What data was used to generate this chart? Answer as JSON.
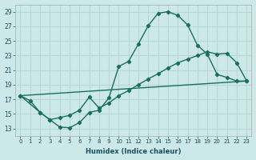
{
  "bg_color": "#cce8e8",
  "grid_color": "#b8d8d8",
  "line_color": "#1a6e60",
  "xlim": [
    -0.5,
    23.5
  ],
  "ylim": [
    12.0,
    30.0
  ],
  "xticks": [
    0,
    1,
    2,
    3,
    4,
    5,
    6,
    7,
    8,
    9,
    10,
    11,
    12,
    13,
    14,
    15,
    16,
    17,
    18,
    19,
    20,
    21,
    22,
    23
  ],
  "yticks": [
    13,
    15,
    17,
    19,
    21,
    23,
    25,
    27,
    29
  ],
  "xlabel": "Humidex (Indice chaleur)",
  "series1_x": [
    0,
    1,
    2,
    3,
    4,
    5,
    6,
    7,
    8,
    9,
    10,
    11,
    12,
    13,
    14,
    15,
    16,
    17,
    18,
    19,
    20,
    21,
    22,
    23
  ],
  "series1_y": [
    17.5,
    16.8,
    15.2,
    14.2,
    13.2,
    13.1,
    13.8,
    15.2,
    15.5,
    17.2,
    21.5,
    22.2,
    24.6,
    27.1,
    28.8,
    29.0,
    28.5,
    27.2,
    24.4,
    23.2,
    20.4,
    20.0,
    19.5,
    19.5
  ],
  "series2_x": [
    0,
    2,
    3,
    4,
    5,
    6,
    7,
    8,
    9,
    10,
    11,
    12,
    13,
    14,
    15,
    16,
    17,
    18,
    19,
    20,
    21,
    22,
    23
  ],
  "series2_y": [
    17.5,
    15.2,
    14.2,
    14.5,
    14.8,
    15.5,
    17.3,
    15.8,
    16.5,
    17.5,
    18.2,
    19.0,
    19.8,
    20.5,
    21.3,
    22.0,
    22.5,
    23.0,
    23.5,
    23.2,
    23.3,
    22.0,
    19.5
  ],
  "series3_x": [
    0,
    23
  ],
  "series3_y": [
    17.5,
    19.5
  ]
}
